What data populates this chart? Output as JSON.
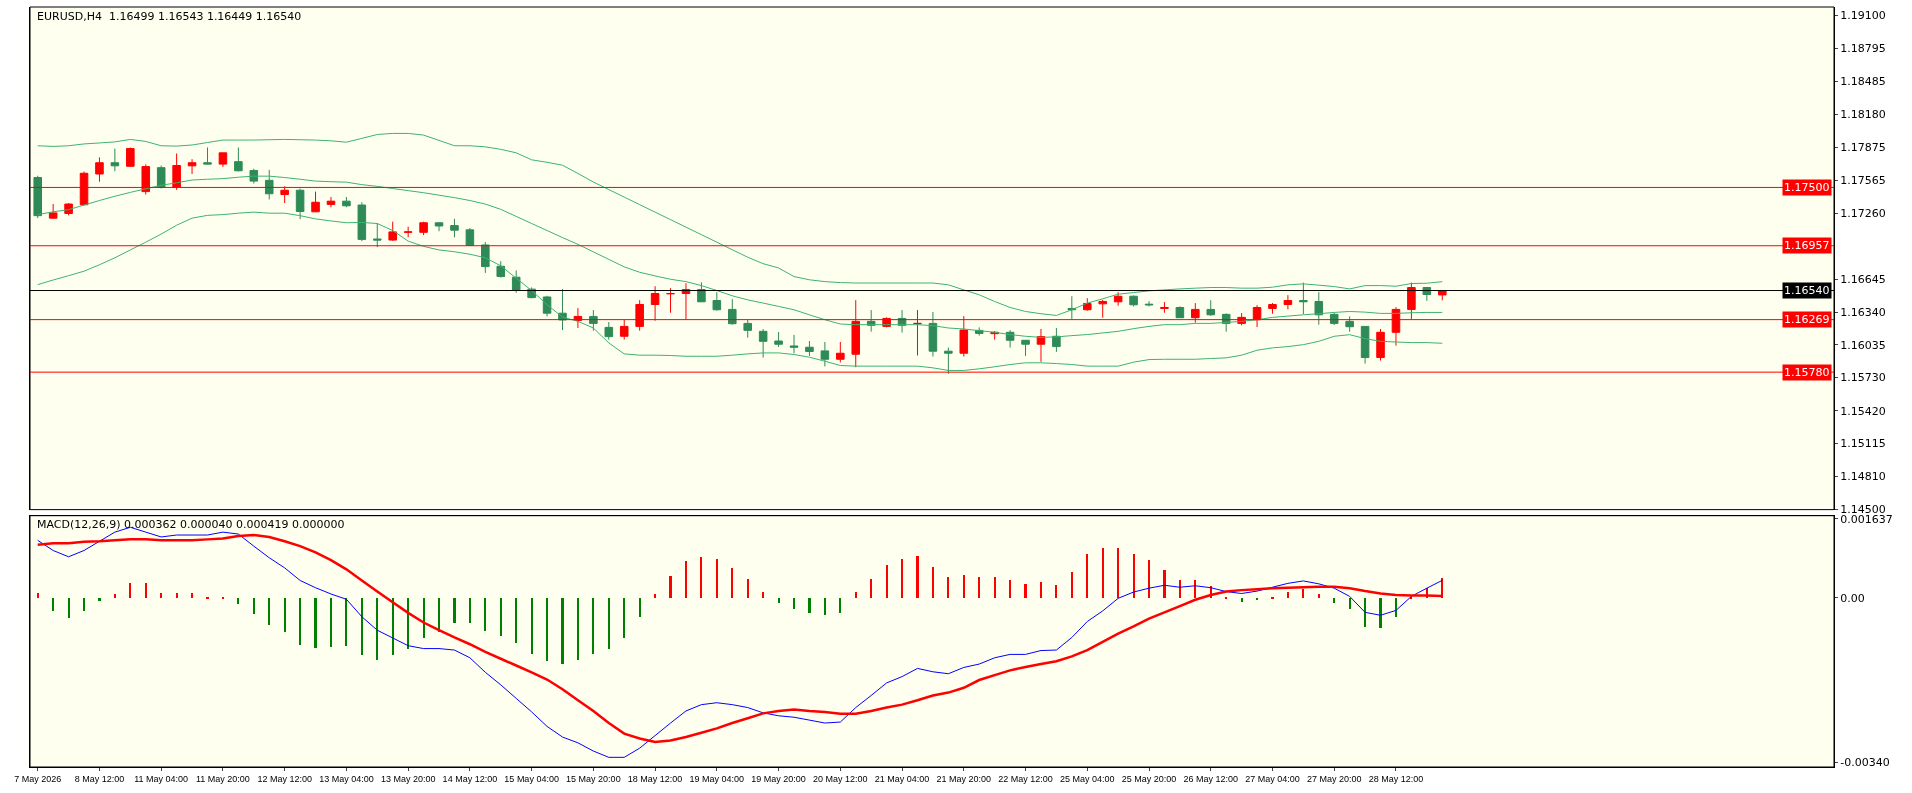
{
  "chart_data": [
    {
      "type": "candlestick",
      "title": "EURUSD,H4  1.16499 1.16543 1.16449 1.16540",
      "categories": [
        null,
        null,
        null,
        null,
        null,
        null,
        null,
        null,
        null,
        null,
        null,
        null,
        null,
        null,
        null,
        null,
        null,
        null,
        null,
        null,
        null,
        null,
        null,
        null,
        null,
        null,
        null,
        null,
        null,
        null,
        null,
        null,
        null,
        null,
        null,
        null,
        null,
        null,
        null,
        null,
        null,
        null,
        null,
        null,
        null,
        null,
        null,
        null,
        null,
        null,
        null,
        null,
        null,
        null,
        null,
        null,
        null,
        null,
        null,
        null,
        null,
        null,
        null,
        null,
        null,
        null,
        null,
        null,
        null,
        null,
        null,
        null,
        null,
        null,
        null,
        null,
        null,
        null,
        null,
        null,
        null,
        null,
        null,
        null,
        null,
        null,
        null,
        null,
        null,
        null,
        null,
        null
      ],
      "ohlc": [
        [
          1.17592,
          1.17609,
          1.17214,
          1.17237
        ],
        [
          1.17214,
          1.17345,
          1.17207,
          1.17263
        ],
        [
          1.17257,
          1.17355,
          1.1724,
          1.17345
        ],
        [
          1.17339,
          1.17648,
          1.17332,
          1.17632
        ],
        [
          1.17625,
          1.1778,
          1.17553,
          1.1773
        ],
        [
          1.1773,
          1.17862,
          1.17651,
          1.17701
        ],
        [
          1.17697,
          1.17872,
          1.17694,
          1.17862
        ],
        [
          1.17461,
          1.17714,
          1.17434,
          1.17694
        ],
        [
          1.17684,
          1.17704,
          1.1749,
          1.17503
        ],
        [
          1.17503,
          1.17816,
          1.17477,
          1.17704
        ],
        [
          1.17701,
          1.17763,
          1.17625,
          1.1773
        ],
        [
          1.1773,
          1.17872,
          1.17714,
          1.17717
        ],
        [
          1.17717,
          1.17822,
          1.17691,
          1.17822
        ],
        [
          1.1774,
          1.17872,
          1.17648,
          1.17655
        ],
        [
          1.17658,
          1.17674,
          1.17536,
          1.17559
        ],
        [
          1.17566,
          1.17664,
          1.17388,
          1.17441
        ],
        [
          1.17434,
          1.1751,
          1.17355,
          1.17474
        ],
        [
          1.17474,
          1.1749,
          1.17204,
          1.17276
        ],
        [
          1.17273,
          1.17461,
          1.1727,
          1.17362
        ],
        [
          1.17342,
          1.17411,
          1.17316,
          1.17372
        ],
        [
          1.17372,
          1.17411,
          1.17316,
          1.17329
        ],
        [
          1.17336,
          1.17362,
          1.17,
          1.17016
        ],
        [
          1.1702,
          1.17168,
          1.16944,
          1.1701
        ],
        [
          1.1701,
          1.17181,
          1.17003,
          1.17086
        ],
        [
          1.17082,
          1.17135,
          1.17036,
          1.17086
        ],
        [
          1.17082,
          1.17181,
          1.17056,
          1.17171
        ],
        [
          1.17171,
          1.17174,
          1.17092,
          1.17141
        ],
        [
          1.17145,
          1.17207,
          1.17036,
          1.17102
        ],
        [
          1.17105,
          1.17122,
          1.1696,
          1.1696
        ],
        [
          1.16964,
          1.1699,
          1.16704,
          1.16763
        ],
        [
          1.16766,
          1.16813,
          1.16661,
          1.16671
        ],
        [
          1.16664,
          1.16727,
          1.1652,
          1.16546
        ],
        [
          1.16553,
          1.16569,
          1.16467,
          1.16474
        ],
        [
          1.1648,
          1.16491,
          1.16299,
          1.16329
        ],
        [
          1.16329,
          1.16553,
          1.16171,
          1.16266
        ],
        [
          1.16262,
          1.16376,
          1.16191,
          1.16299
        ],
        [
          1.16299,
          1.16358,
          1.16166,
          1.16234
        ],
        [
          1.16197,
          1.16247,
          1.16083,
          1.16111
        ],
        [
          1.16114,
          1.16268,
          1.16083,
          1.16206
        ],
        [
          1.16206,
          1.1645,
          1.16166,
          1.1641
        ],
        [
          1.1641,
          1.1658,
          1.16259,
          1.16512
        ],
        [
          1.16509,
          1.16562,
          1.16333,
          1.16512
        ],
        [
          1.16512,
          1.16608,
          1.16271,
          1.16549
        ],
        [
          1.16549,
          1.16617,
          1.16435,
          1.16435
        ],
        [
          1.16447,
          1.16525,
          1.16352,
          1.16361
        ],
        [
          1.16364,
          1.1646,
          1.16222,
          1.16231
        ],
        [
          1.16234,
          1.16268,
          1.16101,
          1.16169
        ],
        [
          1.1616,
          1.16182,
          1.15916,
          1.16067
        ],
        [
          1.1607,
          1.16154,
          1.16015,
          1.1604
        ],
        [
          1.16024,
          1.16126,
          1.15956,
          1.16012
        ],
        [
          1.16012,
          1.1607,
          1.15931,
          1.15972
        ],
        [
          1.15978,
          1.16061,
          1.15833,
          1.159
        ],
        [
          1.159,
          1.16061,
          1.1587,
          1.15956
        ],
        [
          1.15947,
          1.1645,
          1.15826,
          1.16253
        ],
        [
          1.16253,
          1.16358,
          1.16157,
          1.16216
        ],
        [
          1.16206,
          1.1629,
          1.16197,
          1.1628
        ],
        [
          1.1628,
          1.16358,
          1.16148,
          1.16216
        ],
        [
          1.16231,
          1.16358,
          1.15935,
          1.16234
        ],
        [
          1.16234,
          1.1634,
          1.15925,
          1.15975
        ],
        [
          1.15975,
          1.16009,
          1.15765,
          1.15956
        ],
        [
          1.15956,
          1.16302,
          1.15925,
          1.16172
        ],
        [
          1.16169,
          1.16197,
          1.1612,
          1.16141
        ],
        [
          1.16138,
          1.16163,
          1.16083,
          1.16151
        ],
        [
          1.16151,
          1.16172,
          1.16009,
          1.16077
        ],
        [
          1.16077,
          1.16077,
          1.15931,
          1.1604
        ],
        [
          1.1604,
          1.16182,
          1.15876,
          1.16111
        ],
        [
          1.16114,
          1.16191,
          1.15969,
          1.16018
        ],
        [
          1.16373,
          1.16487,
          1.16274,
          1.16361
        ],
        [
          1.16361,
          1.16469,
          1.16352,
          1.16419
        ],
        [
          1.16416,
          1.16453,
          1.16287,
          1.16438
        ],
        [
          1.16435,
          1.16525,
          1.16398,
          1.16487
        ],
        [
          1.16487,
          1.16494,
          1.16392,
          1.16407
        ],
        [
          1.16413,
          1.16441,
          1.16392,
          1.16407
        ],
        [
          1.16373,
          1.16432,
          1.16333,
          1.16382
        ],
        [
          1.16382,
          1.16392,
          1.16287,
          1.16287
        ],
        [
          1.16287,
          1.16423,
          1.1624,
          1.16364
        ],
        [
          1.16364,
          1.1645,
          1.16305,
          1.16314
        ],
        [
          1.16318,
          1.16327,
          1.16157,
          1.16234
        ],
        [
          1.16234,
          1.1633,
          1.16216,
          1.1629
        ],
        [
          1.16268,
          1.16404,
          1.162,
          1.16382
        ],
        [
          1.16373,
          1.16423,
          1.16324,
          1.1641
        ],
        [
          1.1641,
          1.16497,
          1.16364,
          1.16447
        ],
        [
          1.16447,
          1.16614,
          1.16321,
          1.16435
        ],
        [
          1.16438,
          1.16525,
          1.16222,
          1.16314
        ],
        [
          1.16318,
          1.16333,
          1.16219,
          1.16234
        ],
        [
          1.16253,
          1.16299,
          1.16157,
          1.16203
        ],
        [
          1.16206,
          1.16206,
          1.1586,
          1.15916
        ],
        [
          1.15916,
          1.16182,
          1.15888,
          1.16151
        ],
        [
          1.16151,
          1.16385,
          1.16027,
          1.16364
        ],
        [
          1.16364,
          1.16614,
          1.16274,
          1.16568
        ],
        [
          1.16568,
          1.16568,
          1.16444,
          1.16503
        ],
        [
          1.16499,
          1.16543,
          1.16449,
          1.1654
        ]
      ],
      "colors": [
        "#2e8b57",
        "#ff0000",
        "#ff0000",
        "#ff0000",
        "#ff0000",
        "#2e8b57",
        "#ff0000",
        "#ff0000",
        "#2e8b57",
        "#ff0000",
        "#ff0000",
        "#2e8b57",
        "#ff0000",
        "#2e8b57",
        "#2e8b57",
        "#2e8b57",
        "#ff0000",
        "#2e8b57",
        "#ff0000",
        "#ff0000",
        "#2e8b57",
        "#2e8b57",
        "#2e8b57",
        "#ff0000",
        "#ff0000",
        "#ff0000",
        "#2e8b57",
        "#2e8b57",
        "#2e8b57",
        "#2e8b57",
        "#2e8b57",
        "#2e8b57",
        "#2e8b57",
        "#2e8b57",
        "#2e8b57",
        "#ff0000",
        "#2e8b57",
        "#2e8b57",
        "#ff0000",
        "#ff0000",
        "#ff0000",
        "#ff0000",
        "#ff0000",
        "#2e8b57",
        "#2e8b57",
        "#2e8b57",
        "#2e8b57",
        "#2e8b57",
        "#2e8b57",
        "#2e8b57",
        "#2e8b57",
        "#2e8b57",
        "#ff0000",
        "#ff0000",
        "#2e8b57",
        "#ff0000",
        "#2e8b57",
        "#ff0000",
        "#2e8b57",
        "#2e8b57",
        "#ff0000",
        "#2e8b57",
        "#ff0000",
        "#2e8b57",
        "#2e8b57",
        "#ff0000",
        "#2e8b57",
        "#2e8b57",
        "#ff0000",
        "#ff0000",
        "#ff0000",
        "#2e8b57",
        "#2e8b57",
        "#ff0000",
        "#2e8b57",
        "#ff0000",
        "#2e8b57",
        "#2e8b57",
        "#ff0000",
        "#ff0000",
        "#ff0000",
        "#ff0000",
        "#2e8b57",
        "#2e8b57",
        "#2e8b57",
        "#2e8b57",
        "#2e8b57",
        "#ff0000",
        "#ff0000",
        "#ff0000",
        "#2e8b57",
        "#ff0000"
      ],
      "series": [
        {
          "type": "line",
          "color": "#3cb371",
          "values": [
            1.17888,
            1.17882,
            1.17888,
            1.17905,
            1.17914,
            1.17924,
            1.17947,
            1.17928,
            1.17888,
            1.17885,
            1.17895,
            1.17918,
            1.17941,
            1.17941,
            1.17941,
            1.17944,
            1.17947,
            1.17944,
            1.17941,
            1.17934,
            1.17921,
            1.17957,
            1.17993,
            1.18003,
            1.18003,
            1.17987,
            1.17938,
            1.17888,
            1.17888,
            1.17878,
            1.17855,
            1.17822,
            1.17757,
            1.17734,
            1.17707,
            1.1763,
            1.1755,
            1.1748,
            1.1741,
            1.1734,
            1.1727,
            1.172,
            1.1713,
            1.1706,
            1.1699,
            1.1692,
            1.1685,
            1.1679,
            1.1675,
            1.1667,
            1.1664,
            1.16623,
            1.16614,
            1.1661,
            1.1661,
            1.1661,
            1.1661,
            1.1661,
            1.1661,
            1.16593,
            1.16546,
            1.165,
            1.16438,
            1.16382,
            1.16345,
            1.16324,
            1.16308,
            1.16361,
            1.16423,
            1.16463,
            1.16506,
            1.16521,
            1.16537,
            1.16546,
            1.16555,
            1.16562,
            1.16568,
            1.16568,
            1.16562,
            1.16562,
            1.16571,
            1.16593,
            1.16602,
            1.1659,
            1.16577,
            1.16555,
            1.16586,
            1.16586,
            1.1658,
            1.16605,
            1.16608,
            1.16623
          ]
        },
        {
          "type": "line",
          "color": "#3cb371",
          "values": [
            1.17247,
            1.17273,
            1.17293,
            1.17336,
            1.17378,
            1.17418,
            1.17454,
            1.17487,
            1.1752,
            1.17543,
            1.17569,
            1.17576,
            1.17582,
            1.17595,
            1.17605,
            1.17605,
            1.17592,
            1.17576,
            1.17559,
            1.17553,
            1.17549,
            1.17526,
            1.1751,
            1.1749,
            1.1747,
            1.17451,
            1.17428,
            1.17405,
            1.17378,
            1.17345,
            1.17296,
            1.1723,
            1.17164,
            1.17099,
            1.17033,
            1.1697,
            1.169,
            1.1683,
            1.1676,
            1.1671,
            1.16676,
            1.16645,
            1.16623,
            1.16586,
            1.1654,
            1.16491,
            1.16453,
            1.16423,
            1.16392,
            1.16361,
            1.16314,
            1.16268,
            1.16228,
            1.16222,
            1.16222,
            1.16222,
            1.16222,
            1.16222,
            1.16213,
            1.16191,
            1.16182,
            1.16166,
            1.16151,
            1.1613,
            1.16114,
            1.16104,
            1.16108,
            1.1612,
            1.1613,
            1.16145,
            1.1616,
            1.16185,
            1.16206,
            1.16222,
            1.16222,
            1.16234,
            1.16234,
            1.16243,
            1.16253,
            1.16268,
            1.1629,
            1.16302,
            1.16314,
            1.16324,
            1.16336,
            1.16345,
            1.16339,
            1.16327,
            1.16327,
            1.16333,
            1.16336,
            1.16336
          ]
        },
        {
          "type": "line",
          "color": "#3cb371",
          "values": [
            1.16595,
            1.16638,
            1.16678,
            1.1672,
            1.1678,
            1.16845,
            1.16918,
            1.1699,
            1.17066,
            1.17148,
            1.17214,
            1.1724,
            1.17247,
            1.1726,
            1.1727,
            1.1726,
            1.1726,
            1.17237,
            1.17207,
            1.17188,
            1.17171,
            1.17174,
            1.17164,
            1.17099,
            1.17,
            1.16951,
            1.16918,
            1.16901,
            1.16878,
            1.16845,
            1.1677,
            1.16655,
            1.1654,
            1.16408,
            1.16293,
            1.16253,
            1.16191,
            1.16052,
            1.1595,
            1.15938,
            1.15938,
            1.15935,
            1.15928,
            1.15928,
            1.15928,
            1.15938,
            1.1595,
            1.15959,
            1.15959,
            1.15944,
            1.15919,
            1.15882,
            1.15842,
            1.15836,
            1.15836,
            1.15836,
            1.15836,
            1.15836,
            1.1582,
            1.15796,
            1.15796,
            1.15811,
            1.1583,
            1.15851,
            1.15867,
            1.15867,
            1.1586,
            1.15851,
            1.15836,
            1.15836,
            1.15836,
            1.15873,
            1.15897,
            1.159,
            1.159,
            1.159,
            1.15907,
            1.15913,
            1.15938,
            1.15984,
            1.16006,
            1.16018,
            1.16036,
            1.16067,
            1.16114,
            1.16129,
            1.16092,
            1.16067,
            1.16061,
            1.16055,
            1.16055,
            1.16049
          ]
        }
      ],
      "ref_lines": [
        {
          "axis": "y",
          "value": 1.175,
          "label": "1.17500",
          "color": "#ff0000"
        },
        {
          "axis": "y",
          "value": 1.16957,
          "label": "1.16957",
          "color": "#ff0000"
        },
        {
          "axis": "y",
          "value": 1.1654,
          "label": "1.16540",
          "color": "#000000"
        },
        {
          "axis": "y",
          "value": 1.16269,
          "label": "1.16269",
          "color": "#ff0000"
        },
        {
          "axis": "y",
          "value": 1.1578,
          "label": "1.15780",
          "color": "#ff0000"
        }
      ],
      "ylim": [
        1.145,
        1.1918
      ],
      "yticks": [
        {
          "value": 1.191,
          "label": "1.19100"
        },
        {
          "value": 1.18795,
          "label": "1.18795"
        },
        {
          "value": 1.18485,
          "label": "1.18485"
        },
        {
          "value": 1.1818,
          "label": "1.18180"
        },
        {
          "value": 1.17875,
          "label": "1.17875"
        },
        {
          "value": 1.17565,
          "label": "1.17565"
        },
        {
          "value": 1.1726,
          "label": "1.17260"
        },
        {
          "value": 1.16645,
          "label": "1.16645"
        },
        {
          "value": 1.1634,
          "label": "1.16340"
        },
        {
          "value": 1.16035,
          "label": "1.16035"
        },
        {
          "value": 1.1573,
          "label": "1.15730"
        },
        {
          "value": 1.1542,
          "label": "1.15420"
        },
        {
          "value": 1.15115,
          "label": "1.15115"
        },
        {
          "value": 1.1481,
          "label": "1.14810"
        },
        {
          "value": 1.145,
          "label": "1.14500"
        }
      ]
    },
    {
      "type": "bar",
      "title": "MACD(12,26,9) 0.000362 0.000040 0.000419 0.000000",
      "categories": [
        "7 May 2026",
        null,
        null,
        null,
        "8 May 12:00",
        null,
        null,
        null,
        "11 May 04:00",
        null,
        null,
        null,
        "11 May 20:00",
        null,
        null,
        null,
        "12 May 12:00",
        null,
        null,
        null,
        "13 May 04:00",
        null,
        null,
        null,
        "13 May 20:00",
        null,
        null,
        null,
        "14 May 12:00",
        null,
        null,
        null,
        "15 May 04:00",
        null,
        null,
        null,
        "15 May 20:00",
        null,
        null,
        null,
        "18 May 12:00",
        null,
        null,
        null,
        "19 May 04:00",
        null,
        null,
        null,
        "19 May 20:00",
        null,
        null,
        null,
        "20 May 12:00",
        null,
        null,
        null,
        "21 May 04:00",
        null,
        null,
        null,
        "21 May 20:00",
        null,
        null,
        null,
        "22 May 12:00",
        null,
        null,
        null,
        "25 May 04:00",
        null,
        null,
        null,
        "25 May 20:00",
        null,
        null,
        null,
        "26 May 12:00",
        null,
        null,
        null,
        "27 May 04:00",
        null,
        null,
        null,
        "27 May 20:00",
        null,
        null,
        null,
        "28 May 12:00",
        null,
        null,
        null
      ],
      "series": [
        {
          "type": "bar",
          "colors": [
            "#ff0000",
            "#008000",
            "#008000",
            "#008000",
            "#008000",
            "#ff0000",
            "#ff0000",
            "#ff0000",
            "#ff0000",
            "#ff0000",
            "#ff0000",
            "#ff0000",
            "#ff0000",
            "#008000",
            "#008000",
            "#008000",
            "#008000",
            "#008000",
            "#008000",
            "#008000",
            "#008000",
            "#008000",
            "#008000",
            "#008000",
            "#008000",
            "#008000",
            "#008000",
            "#008000",
            "#008000",
            "#008000",
            "#008000",
            "#008000",
            "#008000",
            "#008000",
            "#008000",
            "#008000",
            "#008000",
            "#008000",
            "#008000",
            "#008000",
            "#ff0000",
            "#ff0000",
            "#ff0000",
            "#ff0000",
            "#ff0000",
            "#ff0000",
            "#ff0000",
            "#ff0000",
            "#008000",
            "#008000",
            "#008000",
            "#008000",
            "#008000",
            "#ff0000",
            "#ff0000",
            "#ff0000",
            "#ff0000",
            "#ff0000",
            "#ff0000",
            "#ff0000",
            "#ff0000",
            "#ff0000",
            "#ff0000",
            "#ff0000",
            "#ff0000",
            "#ff0000",
            "#ff0000",
            "#ff0000",
            "#ff0000",
            "#ff0000",
            "#ff0000",
            "#ff0000",
            "#ff0000",
            "#ff0000",
            "#ff0000",
            "#ff0000",
            "#ff0000",
            "#ff0000",
            "#008000",
            "#008000",
            "#ff0000",
            "#ff0000",
            "#ff0000",
            "#ff0000",
            "#008000",
            "#008000",
            "#008000",
            "#008000",
            "#008000",
            "#ff0000",
            "#ff0000",
            "#ff0000"
          ],
          "values": [
            0.0001,
            -0.00026,
            -0.00041,
            -0.00026,
            -6e-05,
            8e-05,
            0.00032,
            0.00032,
            0.0001,
            0.0001,
            0.0001,
            3e-05,
            3e-05,
            -0.00013,
            -0.00032,
            -0.00056,
            -0.00069,
            -0.00096,
            -0.00103,
            -0.00101,
            -0.00099,
            -0.00118,
            -0.00127,
            -0.00118,
            -0.00105,
            -0.00083,
            -0.00069,
            -0.00051,
            -0.00051,
            -0.00067,
            -0.00079,
            -0.00092,
            -0.00116,
            -0.00131,
            -0.00137,
            -0.00128,
            -0.00116,
            -0.00105,
            -0.00082,
            -0.00039,
            9e-05,
            0.00046,
            0.00077,
            0.00085,
            0.00081,
            0.00062,
            0.0004,
            0.00012,
            -0.0001,
            -0.00022,
            -0.00031,
            -0.00035,
            -0.00031,
            0.00013,
            0.0004,
            0.00068,
            0.00081,
            0.00087,
            0.00064,
            0.00044,
            0.00048,
            0.00044,
            0.00044,
            0.00038,
            0.0003,
            0.00034,
            0.00027,
            0.00055,
            0.00092,
            0.00103,
            0.00103,
            0.00091,
            0.00078,
            0.00058,
            0.00038,
            0.00038,
            0.00025,
            2e-05,
            -8e-05,
            -4e-05,
            1e-05,
            0.00013,
            0.00018,
            8e-05,
            -9e-05,
            -0.00023,
            -0.00059,
            -0.00062,
            -0.00039,
            1e-05,
            0.00022,
            0.000419
          ]
        },
        {
          "type": "line",
          "color": "#0000ff",
          "values": [
            0.00119,
            0.00098,
            0.00085,
            0.00098,
            0.00117,
            0.00136,
            0.00146,
            0.00136,
            0.00126,
            0.0013,
            0.0013,
            0.0013,
            0.00136,
            0.00132,
            0.00107,
            0.00083,
            0.00062,
            0.00036,
            0.00021,
            8e-05,
            -3e-05,
            -0.00039,
            -0.00067,
            -0.00083,
            -0.00099,
            -0.00105,
            -0.00105,
            -0.00108,
            -0.00124,
            -0.00154,
            -0.0018,
            -0.00208,
            -0.00236,
            -0.00266,
            -0.00288,
            -0.003,
            -0.00317,
            -0.0033,
            -0.0033,
            -0.00311,
            -0.00285,
            -0.00259,
            -0.00234,
            -0.00221,
            -0.00217,
            -0.00221,
            -0.00227,
            -0.00238,
            -0.00244,
            -0.00247,
            -0.00253,
            -0.00259,
            -0.00257,
            -0.00227,
            -0.00202,
            -0.00176,
            -0.00163,
            -0.00146,
            -0.00153,
            -0.00157,
            -0.00144,
            -0.00137,
            -0.00124,
            -0.00117,
            -0.00117,
            -0.00109,
            -0.00108,
            -0.00082,
            -0.00049,
            -0.00027,
            -1e-05,
            0.00012,
            0.0002,
            0.00026,
            0.00022,
            0.00025,
            0.00021,
            0.00013,
            9e-05,
            0.00014,
            0.00022,
            0.0003,
            0.00035,
            0.00029,
            0.0002,
            3e-05,
            -0.0003,
            -0.00036,
            -0.00026,
            3e-05,
            0.0002,
            0.000362
          ]
        },
        {
          "type": "line",
          "color": "#ff0000",
          "values": [
            0.0011,
            0.00113,
            0.00113,
            0.00116,
            0.00117,
            0.00119,
            0.00121,
            0.00121,
            0.00119,
            0.00119,
            0.00119,
            0.00121,
            0.00123,
            0.00128,
            0.0013,
            0.00126,
            0.00117,
            0.00107,
            0.00094,
            0.00078,
            0.00059,
            0.00036,
            0.00013,
            -9e-05,
            -0.00031,
            -0.00051,
            -0.00067,
            -0.00082,
            -0.00096,
            -0.00112,
            -0.00126,
            -0.0014,
            -0.00154,
            -0.00169,
            -0.00189,
            -0.00212,
            -0.00234,
            -0.00259,
            -0.00281,
            -0.00291,
            -0.00298,
            -0.00295,
            -0.00288,
            -0.00279,
            -0.0027,
            -0.00259,
            -0.00249,
            -0.00239,
            -0.00234,
            -0.00231,
            -0.00234,
            -0.00236,
            -0.0024,
            -0.0024,
            -0.00234,
            -0.00227,
            -0.00221,
            -0.00212,
            -0.00202,
            -0.00196,
            -0.00186,
            -0.0017,
            -0.0016,
            -0.0015,
            -0.00143,
            -0.00137,
            -0.00131,
            -0.00121,
            -0.00108,
            -0.00091,
            -0.00074,
            -0.00059,
            -0.00043,
            -0.0003,
            -0.00017,
            -4e-05,
            6e-05,
            0.00013,
            0.00016,
            0.00018,
            0.0002,
            0.00021,
            0.00022,
            0.00023,
            0.00023,
            0.0002,
            0.00014,
            9e-05,
            6e-05,
            5e-05,
            5e-05,
            4e-05
          ]
        }
      ],
      "ylim": [
        -0.0035,
        0.0017
      ],
      "yticks": [
        {
          "value": 0.001637,
          "label": "0.001637"
        },
        {
          "value": 0,
          "label": "0.00"
        },
        {
          "value": -0.0034,
          "label": "-0.00340"
        }
      ]
    }
  ]
}
